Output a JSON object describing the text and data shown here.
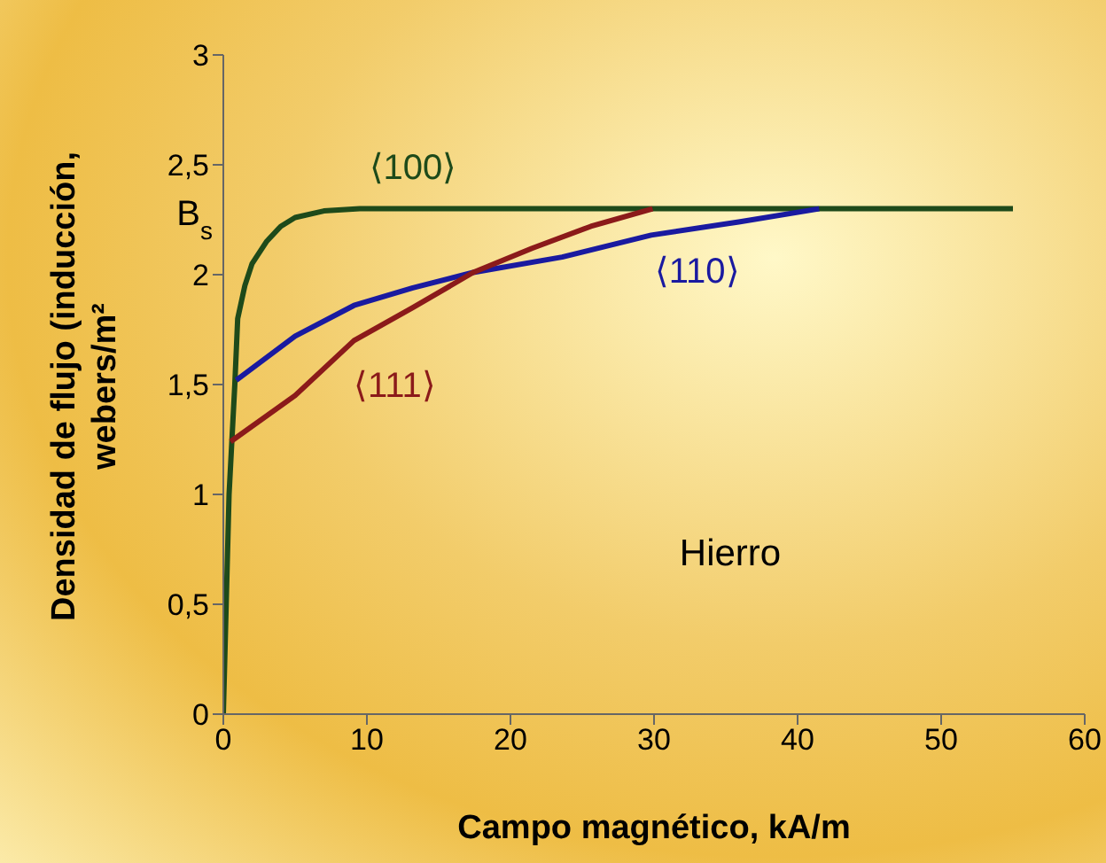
{
  "chart_data": {
    "type": "line",
    "xlabel": "Campo magnético, kA/m",
    "ylabel": "Densidad de flujo (inducción, webers/m²",
    "xlim": [
      0,
      60
    ],
    "xticks": [
      0,
      10,
      20,
      30,
      40,
      50,
      60
    ],
    "ylim": [
      0,
      3
    ],
    "yticks": [
      0,
      {
        "value": 0.5,
        "label": "0,5"
      },
      1,
      {
        "value": 1.5,
        "label": "1,5"
      },
      2,
      {
        "value": 2.5,
        "label": "2,5"
      },
      3
    ],
    "grid": false,
    "legend": false,
    "marker": "none",
    "line_style": "solid",
    "series": [
      {
        "name": "⟨100⟩",
        "color": "#1e4a1a",
        "x": [
          0,
          0.2,
          0.4,
          0.6,
          0.8,
          1,
          1.5,
          2,
          3,
          4,
          5,
          7,
          9.5,
          55
        ],
        "values": [
          0,
          0.5,
          1,
          1.25,
          1.5,
          1.8,
          1.95,
          2.05,
          2.15,
          2.22,
          2.26,
          2.29,
          2.3,
          2.3
        ]
      },
      {
        "name": "⟨110⟩",
        "color": "#1a1aa0",
        "x": [
          0.9,
          5,
          9.1,
          13.2,
          17.4,
          23.6,
          29.8,
          35.9,
          41.5
        ],
        "values": [
          1.52,
          1.72,
          1.86,
          1.94,
          2.01,
          2.08,
          2.18,
          2.24,
          2.3
        ]
      },
      {
        "name": "⟨111⟩",
        "color": "#8b1a1a",
        "x": [
          0.5,
          5,
          9.1,
          13.2,
          17.4,
          21.5,
          25.6,
          29.9
        ],
        "values": [
          1.24,
          1.45,
          1.7,
          1.85,
          2.01,
          2.12,
          2.22,
          2.3
        ]
      }
    ],
    "annotations": [
      "B$_{s}$",
      "Hierro"
    ]
  }
}
